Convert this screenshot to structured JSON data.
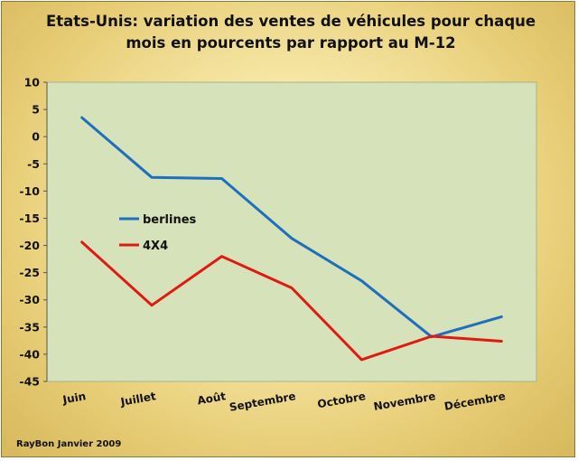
{
  "chart_data": {
    "type": "line",
    "title_lines": [
      "Etats-Unis: variation des ventes de véhicules pour chaque",
      "mois en pourcents par rapport au M-12"
    ],
    "categories": [
      "Juin",
      "Juillet",
      "Août",
      "Septembre",
      "Octobre",
      "Novembre",
      "Décembre"
    ],
    "series": [
      {
        "name": "berlines",
        "color": "#1f6fbf",
        "values": [
          3.5,
          -7.5,
          -7.7,
          -18.7,
          -26.5,
          -36.8,
          -33.1
        ]
      },
      {
        "name": "4X4",
        "color": "#e01a12",
        "values": [
          -19.4,
          -31.0,
          -22.0,
          -27.8,
          -41.0,
          -36.7,
          -37.6
        ]
      }
    ],
    "ylim": [
      -45,
      10
    ],
    "ytick_step": 5,
    "grid": false,
    "legend_position": "inside-left",
    "plot_background": "#d6e2b9"
  },
  "footer": {
    "credit": "RayBon Janvier 2009"
  }
}
